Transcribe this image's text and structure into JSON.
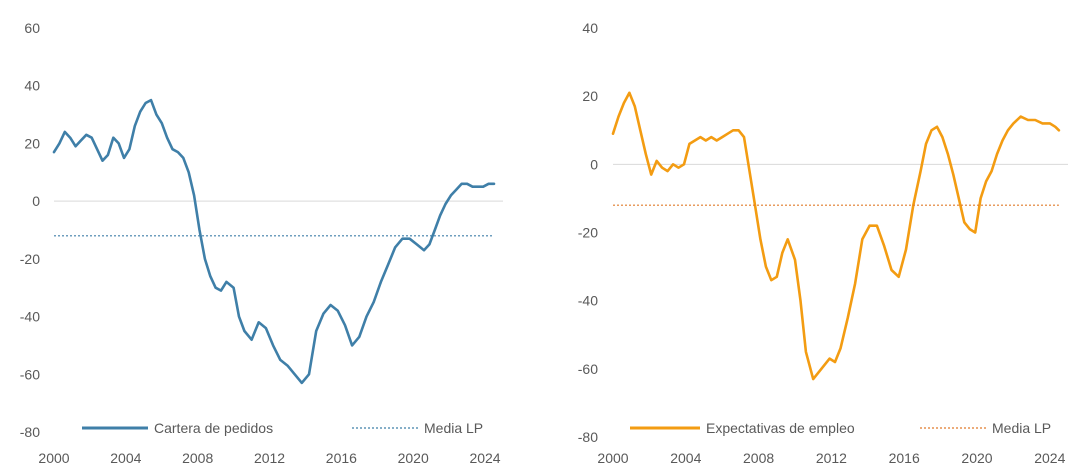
{
  "chart_data": [
    {
      "type": "line",
      "title": "",
      "xlabel": "",
      "ylabel": "",
      "xlim": [
        2000,
        2025
      ],
      "ylim": [
        -80,
        60
      ],
      "x_ticks": [
        2000,
        2004,
        2008,
        2012,
        2016,
        2020,
        2024
      ],
      "x_tick_labels": [
        "2000",
        "2004",
        "2008",
        "2012",
        "2016",
        "2020",
        "2024"
      ],
      "y_ticks": [
        -80,
        -60,
        -40,
        -20,
        0,
        20,
        40,
        60
      ],
      "y_tick_labels": [
        "-80",
        "-60",
        "-40",
        "-20",
        "0",
        "20",
        "40",
        "60"
      ],
      "zero_line": true,
      "grid": false,
      "legend_position": "bottom",
      "series": [
        {
          "name": "Cartera de pedidos",
          "style": "solid",
          "color": "#3F7FA8",
          "x": [
            2000.0,
            2000.3,
            2000.6,
            2000.9,
            2001.2,
            2001.5,
            2001.8,
            2002.1,
            2002.4,
            2002.7,
            2003.0,
            2003.3,
            2003.6,
            2003.9,
            2004.2,
            2004.5,
            2004.8,
            2005.1,
            2005.4,
            2005.7,
            2006.0,
            2006.3,
            2006.6,
            2006.9,
            2007.2,
            2007.5,
            2007.8,
            2008.1,
            2008.4,
            2008.7,
            2009.0,
            2009.3,
            2009.6,
            2010.0,
            2010.3,
            2010.6,
            2011.0,
            2011.4,
            2011.8,
            2012.2,
            2012.6,
            2013.0,
            2013.4,
            2013.8,
            2014.2,
            2014.6,
            2015.0,
            2015.4,
            2015.8,
            2016.2,
            2016.6,
            2017.0,
            2017.4,
            2017.8,
            2018.2,
            2018.6,
            2019.0,
            2019.4,
            2019.8,
            2020.2,
            2020.6,
            2020.9,
            2021.2,
            2021.5,
            2021.8,
            2022.1,
            2022.4,
            2022.7,
            2023.0,
            2023.3,
            2023.6,
            2023.9,
            2024.2,
            2024.5
          ],
          "values": [
            17,
            20,
            24,
            22,
            19,
            21,
            23,
            22,
            18,
            14,
            16,
            22,
            20,
            15,
            18,
            26,
            31,
            34,
            35,
            30,
            27,
            22,
            18,
            17,
            15,
            10,
            2,
            -10,
            -20,
            -26,
            -30,
            -31,
            -28,
            -30,
            -40,
            -45,
            -48,
            -42,
            -44,
            -50,
            -55,
            -57,
            -60,
            -63,
            -60,
            -45,
            -39,
            -36,
            -38,
            -43,
            -50,
            -47,
            -40,
            -35,
            -28,
            -22,
            -16,
            -13,
            -13,
            -15,
            -17,
            -15,
            -10,
            -5,
            -1,
            2,
            4,
            6,
            6,
            5,
            5,
            5,
            6,
            6
          ]
        },
        {
          "name": "Media LP",
          "style": "dotted",
          "color": "#3F7FA8",
          "x": [
            2000,
            2024.5
          ],
          "values": [
            -12,
            -12
          ]
        }
      ]
    },
    {
      "type": "line",
      "title": "",
      "xlabel": "",
      "ylabel": "",
      "xlim": [
        2000,
        2025
      ],
      "ylim": [
        -80,
        40
      ],
      "x_ticks": [
        2000,
        2004,
        2008,
        2012,
        2016,
        2020,
        2024
      ],
      "x_tick_labels": [
        "2000",
        "2004",
        "2008",
        "2012",
        "2016",
        "2020",
        "2024"
      ],
      "y_ticks": [
        -80,
        -60,
        -40,
        -20,
        0,
        20,
        40
      ],
      "y_tick_labels": [
        "-80",
        "-60",
        "-40",
        "-20",
        "0",
        "20",
        "40"
      ],
      "zero_line": true,
      "grid": false,
      "legend_position": "bottom",
      "series": [
        {
          "name": "Expectativas de empleo",
          "style": "solid",
          "color": "#F39C12",
          "x": [
            2000.0,
            2000.3,
            2000.6,
            2000.9,
            2001.2,
            2001.5,
            2001.8,
            2002.1,
            2002.4,
            2002.7,
            2003.0,
            2003.3,
            2003.6,
            2003.9,
            2004.2,
            2004.5,
            2004.8,
            2005.1,
            2005.4,
            2005.7,
            2006.0,
            2006.3,
            2006.6,
            2006.9,
            2007.2,
            2007.5,
            2007.8,
            2008.1,
            2008.4,
            2008.7,
            2009.0,
            2009.3,
            2009.6,
            2010.0,
            2010.3,
            2010.6,
            2011.0,
            2011.3,
            2011.6,
            2011.9,
            2012.2,
            2012.5,
            2012.9,
            2013.3,
            2013.7,
            2014.1,
            2014.5,
            2014.9,
            2015.3,
            2015.7,
            2016.1,
            2016.5,
            2016.9,
            2017.2,
            2017.5,
            2017.8,
            2018.1,
            2018.4,
            2018.7,
            2019.0,
            2019.3,
            2019.6,
            2019.9,
            2020.2,
            2020.5,
            2020.8,
            2021.1,
            2021.4,
            2021.7,
            2022.0,
            2022.4,
            2022.8,
            2023.2,
            2023.6,
            2024.0,
            2024.3,
            2024.5
          ],
          "values": [
            9,
            14,
            18,
            21,
            17,
            10,
            3,
            -3,
            1,
            -1,
            -2,
            0,
            -1,
            0,
            6,
            7,
            8,
            7,
            8,
            7,
            8,
            9,
            10,
            10,
            8,
            -2,
            -12,
            -22,
            -30,
            -34,
            -33,
            -26,
            -22,
            -28,
            -40,
            -55,
            -63,
            -61,
            -59,
            -57,
            -58,
            -54,
            -45,
            -35,
            -22,
            -18,
            -18,
            -24,
            -31,
            -33,
            -25,
            -12,
            -2,
            6,
            10,
            11,
            8,
            3,
            -3,
            -10,
            -17,
            -19,
            -20,
            -10,
            -5,
            -2,
            3,
            7,
            10,
            12,
            14,
            13,
            13,
            12,
            12,
            11,
            10
          ]
        },
        {
          "name": "Media LP",
          "style": "dotted",
          "color": "#E07B2A",
          "x": [
            2000,
            2024.5
          ],
          "values": [
            -12,
            -12
          ]
        }
      ]
    }
  ]
}
